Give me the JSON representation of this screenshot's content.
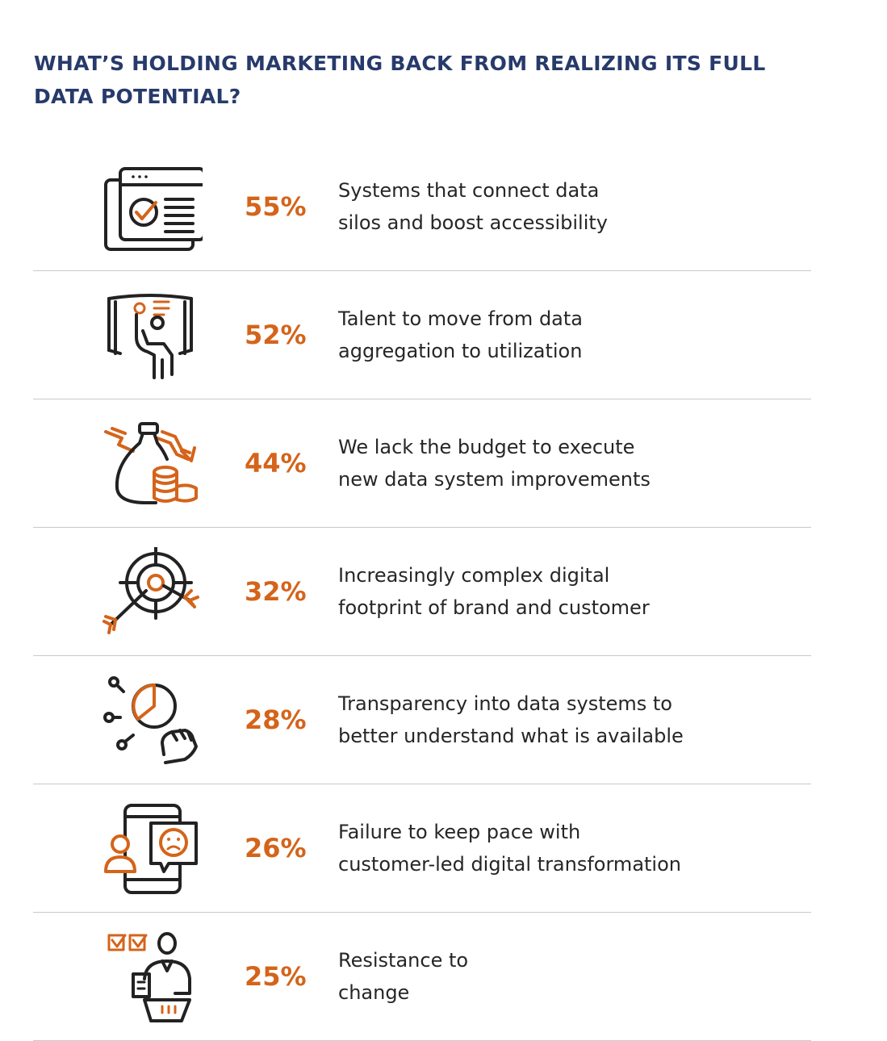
{
  "title_line1": "WHAT’S HOLDING MARKETING BACK FROM REALIZING ITS FULL",
  "title_line2": "DATA POTENTIAL?",
  "colors": {
    "accent": "#d4641a",
    "title": "#273a6b",
    "text": "#262626",
    "divider": "#c9c9c9"
  },
  "rows": [
    {
      "icon": "browser-checklist-icon",
      "percent": "55%",
      "line1": "Systems that connect data",
      "line2": "silos and boost accessibility"
    },
    {
      "icon": "person-touchscreen-icon",
      "percent": "52%",
      "line1": "Talent to move from data",
      "line2": "aggregation to utilization"
    },
    {
      "icon": "money-bag-decline-icon",
      "percent": "44%",
      "line1": "We lack the budget to execute",
      "line2": "new data system improvements"
    },
    {
      "icon": "target-arrows-icon",
      "percent": "32%",
      "line1": "Increasingly complex digital",
      "line2": "footprint of brand and customer"
    },
    {
      "icon": "pie-chart-hand-icon",
      "percent": "28%",
      "line1": "Transparency into data systems to",
      "line2": "better understand what is available"
    },
    {
      "icon": "phone-unhappy-customer-icon",
      "percent": "26%",
      "line1": "Failure to keep pace with",
      "line2": "customer-led digital transformation"
    },
    {
      "icon": "person-checklist-icon",
      "percent": "25%",
      "line1": "Resistance to",
      "line2": "change"
    }
  ]
}
